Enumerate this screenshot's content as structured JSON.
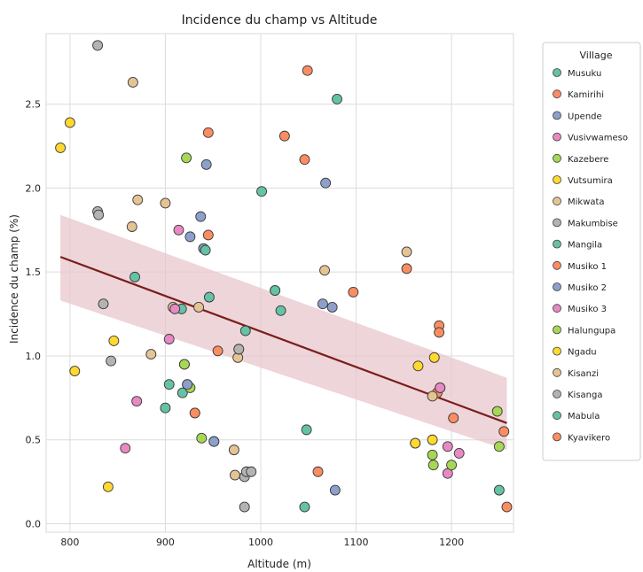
{
  "chart_data": {
    "type": "scatter",
    "title": "Incidence du champ vs Altitude",
    "xlabel": "Altitude (m)",
    "ylabel": "Incidence du champ (%)",
    "xlim": [
      775,
      1265
    ],
    "ylim": [
      -0.05,
      2.92
    ],
    "xticks": [
      800,
      900,
      1000,
      1100,
      1200
    ],
    "yticks": [
      0.0,
      0.5,
      1.0,
      1.5,
      2.0,
      2.5
    ],
    "grid": true,
    "legend_title": "Village",
    "legend_position": "outside-right",
    "regression": {
      "x": [
        790,
        1258
      ],
      "y": [
        1.59,
        0.6
      ],
      "ci_upper": [
        1.84,
        0.87
      ],
      "ci_lower": [
        1.33,
        0.44
      ],
      "color": "#7b1c1c",
      "band_color": "#e7c7cc"
    },
    "series": [
      {
        "name": "Musuku",
        "color": "#66c2a5",
        "points": [
          [
            1080,
            2.53
          ],
          [
            918,
            0.78
          ],
          [
            1250,
            0.2
          ],
          [
            1046,
            0.1
          ],
          [
            868,
            1.47
          ]
        ]
      },
      {
        "name": "Kamirihi",
        "color": "#fc8d62",
        "points": [
          [
            1049,
            2.7
          ],
          [
            1046,
            2.17
          ],
          [
            945,
            1.72
          ],
          [
            955,
            1.03
          ],
          [
            931,
            0.66
          ],
          [
            1060,
            0.31
          ],
          [
            1255,
            0.55
          ],
          [
            1185,
            0.78
          ]
        ]
      },
      {
        "name": "Upende",
        "color": "#8da0cb",
        "points": [
          [
            943,
            2.14
          ],
          [
            937,
            1.83
          ],
          [
            926,
            1.71
          ],
          [
            940,
            1.64
          ],
          [
            1068,
            2.03
          ],
          [
            1065,
            1.31
          ],
          [
            1075,
            1.29
          ],
          [
            923,
            0.83
          ],
          [
            951,
            0.49
          ],
          [
            1078,
            0.2
          ]
        ]
      },
      {
        "name": "Vusivwameso",
        "color": "#e78ac3",
        "points": [
          [
            914,
            1.75
          ],
          [
            904,
            1.1
          ],
          [
            870,
            0.73
          ],
          [
            858,
            0.45
          ],
          [
            1188,
            0.81
          ],
          [
            1196,
            0.46
          ],
          [
            1196,
            0.3
          ],
          [
            1208,
            0.42
          ]
        ]
      },
      {
        "name": "Kazebere",
        "color": "#a6d854",
        "points": [
          [
            922,
            2.18
          ],
          [
            920,
            0.95
          ],
          [
            926,
            0.81
          ],
          [
            938,
            0.51
          ],
          [
            1181,
            0.35
          ],
          [
            1180,
            0.41
          ],
          [
            1200,
            0.35
          ],
          [
            1250,
            0.46
          ]
        ]
      },
      {
        "name": "Vutsumira",
        "color": "#ffd92f",
        "points": [
          [
            790,
            2.24
          ],
          [
            800,
            2.39
          ],
          [
            805,
            0.91
          ],
          [
            846,
            1.09
          ],
          [
            840,
            0.22
          ],
          [
            1165,
            0.94
          ],
          [
            1182,
            0.99
          ],
          [
            1180,
            0.5
          ],
          [
            1162,
            0.48
          ]
        ]
      },
      {
        "name": "Mikwata",
        "color": "#e5c494",
        "points": [
          [
            866,
            2.63
          ],
          [
            871,
            1.93
          ],
          [
            865,
            1.77
          ],
          [
            900,
            1.91
          ],
          [
            885,
            1.01
          ],
          [
            908,
            1.29
          ],
          [
            935,
            1.29
          ],
          [
            972,
            0.44
          ],
          [
            976,
            0.99
          ],
          [
            1067,
            1.51
          ],
          [
            1153,
            1.62
          ]
        ]
      },
      {
        "name": "Makumbise",
        "color": "#b3b3b3",
        "points": [
          [
            829,
            2.85
          ],
          [
            829,
            1.86
          ],
          [
            830,
            1.84
          ],
          [
            835,
            1.31
          ],
          [
            843,
            0.97
          ],
          [
            977,
            1.04
          ],
          [
            983,
            0.28
          ],
          [
            985,
            0.31
          ],
          [
            990,
            0.31
          ],
          [
            983,
            0.1
          ]
        ]
      },
      {
        "name": "Mangila",
        "color": "#66c2a5",
        "points": [
          [
            1001,
            1.98
          ],
          [
            1015,
            1.39
          ],
          [
            946,
            1.35
          ],
          [
            942,
            1.63
          ],
          [
            917,
            1.28
          ],
          [
            904,
            0.83
          ],
          [
            900,
            0.69
          ],
          [
            984,
            1.15
          ],
          [
            1048,
            0.56
          ],
          [
            1021,
            1.27
          ]
        ]
      },
      {
        "name": "Musiko 1",
        "color": "#fc8d62",
        "points": [
          [
            945,
            2.33
          ],
          [
            1025,
            2.31
          ],
          [
            1097,
            1.38
          ],
          [
            1153,
            1.52
          ],
          [
            1187,
            1.18
          ],
          [
            1187,
            1.14
          ],
          [
            1202,
            0.63
          ],
          [
            1258,
            0.1
          ]
        ]
      },
      {
        "name": "Musiko 2",
        "color": "#8da0cb",
        "points": [
          [
            923,
            0.83
          ],
          [
            951,
            0.49
          ]
        ]
      },
      {
        "name": "Musiko 3",
        "color": "#e78ac3",
        "points": [
          [
            910,
            1.28
          ],
          [
            1188,
            0.81
          ]
        ]
      },
      {
        "name": "Halungupa",
        "color": "#a6d854",
        "points": [
          [
            920,
            0.95
          ],
          [
            1248,
            0.67
          ]
        ]
      },
      {
        "name": "Ngadu",
        "color": "#ffd92f",
        "points": [
          [
            1162,
            0.48
          ]
        ]
      },
      {
        "name": "Kisanzi",
        "color": "#e5c494",
        "points": [
          [
            973,
            0.29
          ],
          [
            1180,
            0.76
          ]
        ]
      },
      {
        "name": "Kisanga",
        "color": "#b3b3b3",
        "points": [
          [
            977,
            1.04
          ]
        ]
      },
      {
        "name": "Mabula",
        "color": "#66c2a5",
        "points": [
          [
            1015,
            1.39
          ]
        ]
      },
      {
        "name": "Kyavikero",
        "color": "#fc8d62",
        "points": [
          [
            931,
            0.66
          ]
        ]
      }
    ]
  }
}
